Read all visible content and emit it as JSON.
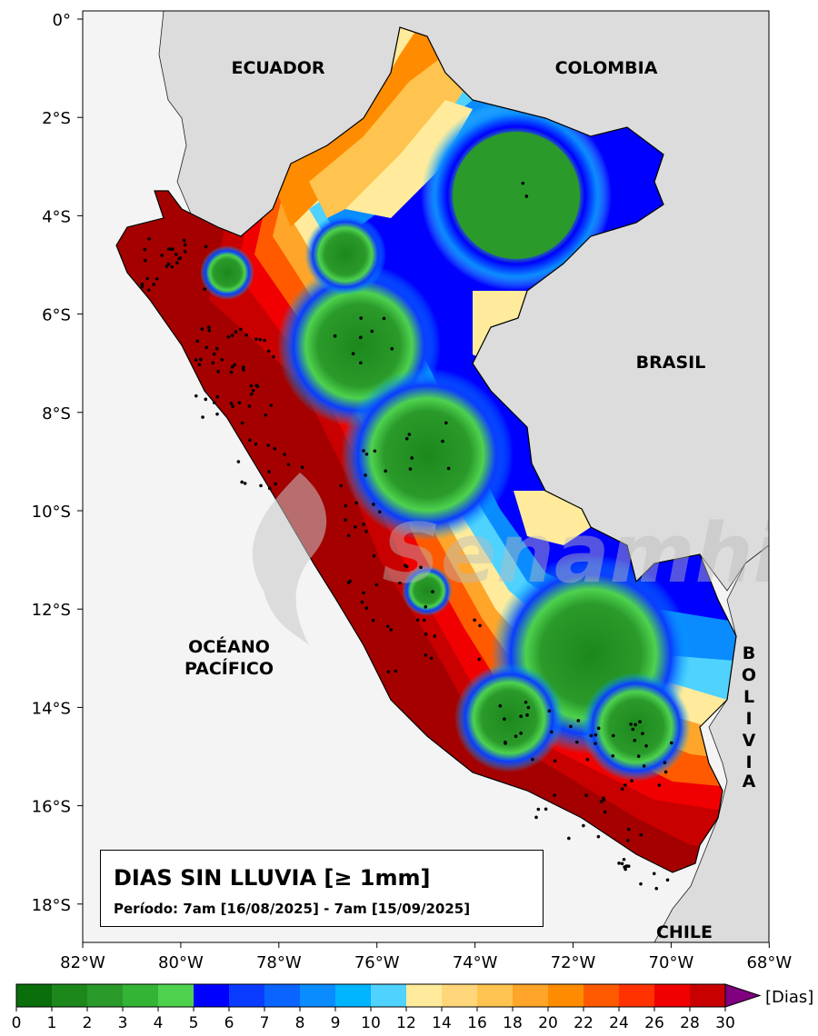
{
  "map": {
    "title": "DIAS SIN LLUVIA [≥ 1mm]",
    "period": "Período: 7am [16/08/2025] - 7am [15/09/2025]",
    "watermark": "Senamhi",
    "country_labels": {
      "ecuador": "ECUADOR",
      "colombia": "COLOMBIA",
      "brasil": "BRASIL",
      "chile": "CHILE",
      "ocean_line1": "OCÉANO",
      "ocean_line2": "PACÍFICO",
      "bolivia_letters": [
        "B",
        "O",
        "L",
        "I",
        "V",
        "I",
        "A"
      ]
    },
    "lat_ticks": [
      "0°",
      "2°S",
      "4°S",
      "6°S",
      "8°S",
      "10°S",
      "12°S",
      "14°S",
      "16°S",
      "18°S"
    ],
    "lon_ticks": [
      "82°W",
      "80°W",
      "78°W",
      "76°W",
      "74°W",
      "72°W",
      "70°W",
      "68°W"
    ]
  },
  "colorbar": {
    "unit_label": "[Dias]",
    "tick_labels": [
      "0",
      "1",
      "2",
      "3",
      "4",
      "5",
      "6",
      "7",
      "8",
      "9",
      "10",
      "12",
      "14",
      "16",
      "18",
      "20",
      "22",
      "24",
      "26",
      "28",
      "30"
    ],
    "colors": [
      "#0a6e0a",
      "#1c881c",
      "#2a9a2a",
      "#34b434",
      "#4ed24e",
      "#0000ff",
      "#0a3cff",
      "#0a64ff",
      "#0a8cff",
      "#00b4ff",
      "#50d2ff",
      "#ffeb9b",
      "#ffd77a",
      "#ffc34f",
      "#ffa52a",
      "#ff8c00",
      "#ff5a00",
      "#ff3200",
      "#f00000",
      "#c80000",
      "#a50000"
    ],
    "extend_color": "#800080"
  }
}
